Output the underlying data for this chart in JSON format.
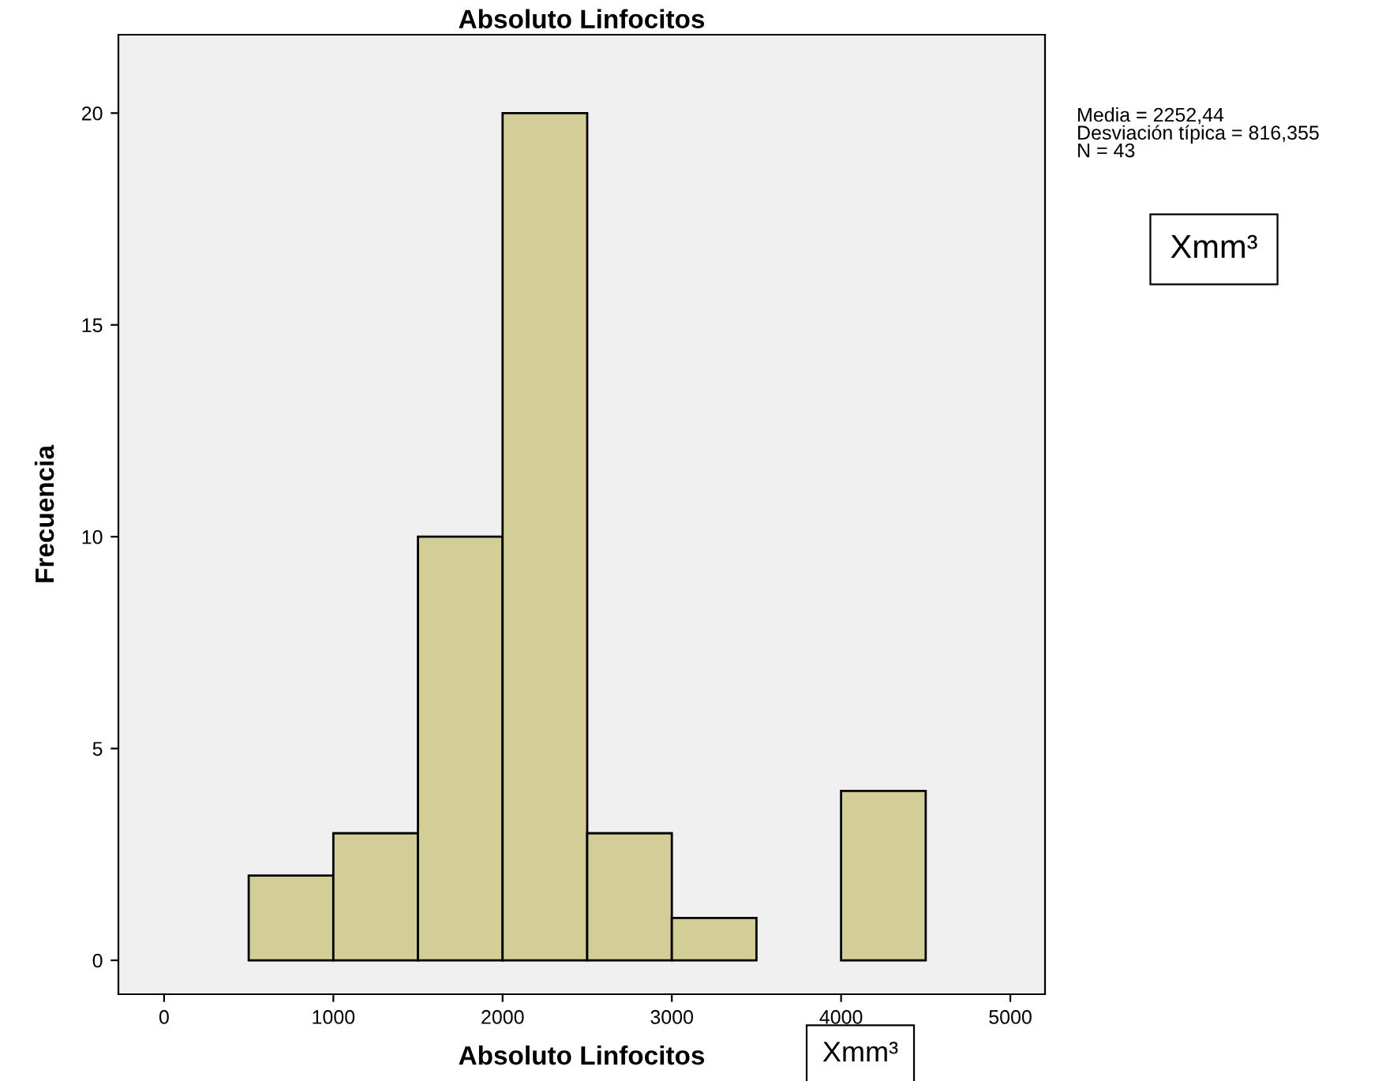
{
  "chart_data": {
    "type": "histogram",
    "title": "Absoluto Linfocitos",
    "xlabel": "Absoluto Linfocitos",
    "ylabel": "Frecuencia",
    "bins": [
      500,
      1000,
      1500,
      2000,
      2500,
      3000,
      3500,
      4000,
      4500
    ],
    "values": [
      2,
      3,
      10,
      20,
      3,
      1,
      0,
      4
    ],
    "color": "#d3ce97",
    "xlim": [
      -270,
      5205
    ],
    "ylim": [
      -0.8,
      21.85
    ],
    "xticks": [
      0,
      1000,
      2000,
      3000,
      4000,
      5000
    ],
    "yticks": [
      0,
      5,
      10,
      15,
      20
    ],
    "grid": false,
    "annotations": [
      "Media = 2252,44\nDesviación típica = 816,355\nN = 43",
      "Xmm³",
      "Xmm³"
    ]
  }
}
